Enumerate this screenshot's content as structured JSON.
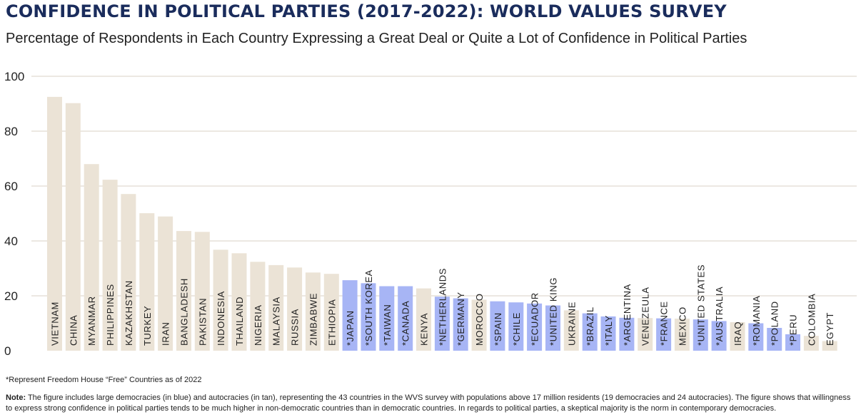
{
  "header": {
    "title": "CONFIDENCE IN POLITICAL PARTIES (2017-2022): WORLD VALUES SURVEY",
    "subtitle": "Percentage of Respondents in Each Country Expressing a Great Deal or Quite a Lot of Confidence in Political Parties"
  },
  "footer": {
    "footnote": "*Represent Freedom House “Free” Countries as of 2022",
    "note_label": "Note:",
    "note_text": " The figure includes large democracies (in blue) and autocracies (in tan), representing the 43 countries in the WVS survey with populations above 17 million residents (19 democracies and 24 autocracies). The figure shows that willingness to express strong confidence in political parties tends to be much higher in non-democratic countries than in democratic countries. In regards to political parties, a skeptical majority is the norm in contemporary democracies."
  },
  "colors": {
    "democracy": "#a7b5f5",
    "autocracy": "#ebe3d6",
    "gridline": "#d9d2c5",
    "text": "#222222"
  },
  "chart_data": {
    "type": "bar",
    "ylim": [
      0,
      100
    ],
    "yticks": [
      0,
      20,
      40,
      60,
      80,
      100
    ],
    "grid": true,
    "categories": [
      "VIETNAM",
      "CHINA",
      "MYANMAR",
      "PHILIPPINES",
      "KAZAKHSTAN",
      "TURKEY",
      "IRAN",
      "BANGLADESH",
      "PAKISTAN",
      "INDONESIA",
      "THAILAND",
      "NIGERIA",
      "MALAYSIA",
      "RUSSIA",
      "ZIMBABWE",
      "ETHIOPIA",
      "*JAPAN",
      "*SOUTH KOREA",
      "*TAIWAN",
      "*CANADA",
      "KENYA",
      "*NETHERLANDS",
      "*GERMANY",
      "MOROCCO",
      "*SPAIN",
      "*CHILE",
      "*ECUADOR",
      "*UNITED KING",
      "UKRAINE",
      "*BRAZIL",
      "*ITALY",
      "*ARGENTINA",
      "VENEZEULA",
      "*FRANCE",
      "MEXICO",
      "*UNITED STATES",
      "*AUSTRALIA",
      "IRAQ",
      "*ROMANIA",
      "*POLAND",
      "*PERU",
      "COLOMBIA",
      "EGYPT"
    ],
    "values": [
      92.5,
      90.2,
      68.0,
      62.3,
      57.1,
      50.1,
      48.9,
      43.6,
      43.3,
      36.8,
      35.5,
      32.4,
      31.2,
      30.3,
      28.5,
      28.0,
      25.7,
      24.6,
      23.5,
      23.5,
      22.7,
      19.7,
      19.1,
      18.6,
      18.0,
      17.6,
      17.2,
      16.5,
      14.7,
      13.6,
      12.5,
      12.0,
      11.9,
      11.8,
      11.7,
      11.4,
      10.8,
      10.4,
      10.0,
      8.3,
      6.0,
      5.4,
      3.5
    ],
    "group": [
      "autocracy",
      "autocracy",
      "autocracy",
      "autocracy",
      "autocracy",
      "autocracy",
      "autocracy",
      "autocracy",
      "autocracy",
      "autocracy",
      "autocracy",
      "autocracy",
      "autocracy",
      "autocracy",
      "autocracy",
      "autocracy",
      "democracy",
      "democracy",
      "democracy",
      "democracy",
      "autocracy",
      "democracy",
      "democracy",
      "autocracy",
      "democracy",
      "democracy",
      "democracy",
      "democracy",
      "autocracy",
      "democracy",
      "democracy",
      "democracy",
      "autocracy",
      "democracy",
      "autocracy",
      "democracy",
      "democracy",
      "autocracy",
      "democracy",
      "democracy",
      "democracy",
      "autocracy",
      "autocracy"
    ]
  }
}
